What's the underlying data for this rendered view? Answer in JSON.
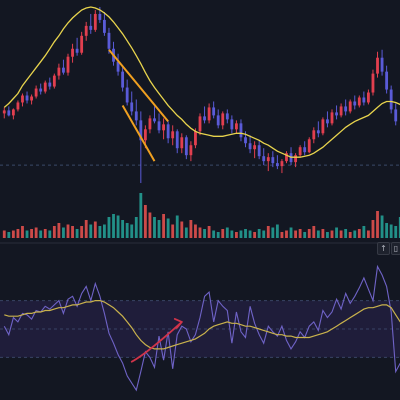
{
  "colors": {
    "background": "#131722",
    "rsi_band": "#1f1d3a",
    "up": "#e23f4f",
    "down": "#5a5bd8",
    "volume_up": "#ef5350",
    "volume_down": "#26a69a",
    "ma": "#e8d44d",
    "rsi": "#6f63c7",
    "rsi_ma": "#c9b24c",
    "levels": "#3a4466",
    "pane_separator": "#2a2e39",
    "wedge": "#f0a020",
    "arrow": "#d0344a"
  },
  "pane_buttons": {
    "up_icon": "↑",
    "collapse_icon": "▯"
  },
  "chart_data": [
    {
      "type": "candlestick",
      "title": "",
      "xlabel": "",
      "ylabel": "",
      "candles": [
        {
          "o": 90,
          "h": 96,
          "l": 85,
          "c": 93
        },
        {
          "o": 93,
          "h": 97,
          "l": 87,
          "c": 88
        },
        {
          "o": 88,
          "h": 95,
          "l": 84,
          "c": 94
        },
        {
          "o": 94,
          "h": 103,
          "l": 92,
          "c": 101
        },
        {
          "o": 101,
          "h": 110,
          "l": 97,
          "c": 108
        },
        {
          "o": 108,
          "h": 112,
          "l": 100,
          "c": 103
        },
        {
          "o": 103,
          "h": 109,
          "l": 99,
          "c": 107
        },
        {
          "o": 107,
          "h": 118,
          "l": 105,
          "c": 115
        },
        {
          "o": 115,
          "h": 120,
          "l": 109,
          "c": 112
        },
        {
          "o": 112,
          "h": 123,
          "l": 110,
          "c": 121
        },
        {
          "o": 121,
          "h": 126,
          "l": 114,
          "c": 117
        },
        {
          "o": 117,
          "h": 130,
          "l": 115,
          "c": 128
        },
        {
          "o": 128,
          "h": 140,
          "l": 124,
          "c": 136
        },
        {
          "o": 136,
          "h": 144,
          "l": 129,
          "c": 131
        },
        {
          "o": 131,
          "h": 150,
          "l": 128,
          "c": 147
        },
        {
          "o": 147,
          "h": 160,
          "l": 141,
          "c": 155
        },
        {
          "o": 155,
          "h": 166,
          "l": 148,
          "c": 151
        },
        {
          "o": 151,
          "h": 172,
          "l": 149,
          "c": 168
        },
        {
          "o": 168,
          "h": 182,
          "l": 163,
          "c": 178
        },
        {
          "o": 178,
          "h": 190,
          "l": 170,
          "c": 174
        },
        {
          "o": 174,
          "h": 194,
          "l": 172,
          "c": 190
        },
        {
          "o": 190,
          "h": 197,
          "l": 181,
          "c": 184
        },
        {
          "o": 184,
          "h": 192,
          "l": 168,
          "c": 171
        },
        {
          "o": 171,
          "h": 176,
          "l": 150,
          "c": 155
        },
        {
          "o": 155,
          "h": 162,
          "l": 138,
          "c": 142
        },
        {
          "o": 142,
          "h": 150,
          "l": 128,
          "c": 132
        },
        {
          "o": 132,
          "h": 138,
          "l": 112,
          "c": 116
        },
        {
          "o": 116,
          "h": 124,
          "l": 98,
          "c": 101
        },
        {
          "o": 101,
          "h": 112,
          "l": 88,
          "c": 92
        },
        {
          "o": 92,
          "h": 104,
          "l": 78,
          "c": 83
        },
        {
          "o": 83,
          "h": 92,
          "l": 20,
          "c": 63
        },
        {
          "o": 63,
          "h": 78,
          "l": 55,
          "c": 74
        },
        {
          "o": 74,
          "h": 88,
          "l": 70,
          "c": 85
        },
        {
          "o": 85,
          "h": 97,
          "l": 80,
          "c": 82
        },
        {
          "o": 82,
          "h": 90,
          "l": 70,
          "c": 73
        },
        {
          "o": 73,
          "h": 85,
          "l": 64,
          "c": 79
        },
        {
          "o": 79,
          "h": 82,
          "l": 60,
          "c": 65
        },
        {
          "o": 65,
          "h": 78,
          "l": 58,
          "c": 72
        },
        {
          "o": 72,
          "h": 74,
          "l": 50,
          "c": 55
        },
        {
          "o": 55,
          "h": 70,
          "l": 50,
          "c": 66
        },
        {
          "o": 66,
          "h": 68,
          "l": 44,
          "c": 48
        },
        {
          "o": 48,
          "h": 62,
          "l": 42,
          "c": 58
        },
        {
          "o": 58,
          "h": 75,
          "l": 55,
          "c": 72
        },
        {
          "o": 72,
          "h": 90,
          "l": 68,
          "c": 87
        },
        {
          "o": 87,
          "h": 97,
          "l": 80,
          "c": 83
        },
        {
          "o": 83,
          "h": 100,
          "l": 80,
          "c": 96
        },
        {
          "o": 96,
          "h": 102,
          "l": 85,
          "c": 88
        },
        {
          "o": 88,
          "h": 94,
          "l": 75,
          "c": 78
        },
        {
          "o": 78,
          "h": 92,
          "l": 74,
          "c": 90
        },
        {
          "o": 90,
          "h": 94,
          "l": 80,
          "c": 84
        },
        {
          "o": 84,
          "h": 88,
          "l": 70,
          "c": 74
        },
        {
          "o": 74,
          "h": 83,
          "l": 70,
          "c": 80
        },
        {
          "o": 80,
          "h": 84,
          "l": 62,
          "c": 66
        },
        {
          "o": 66,
          "h": 72,
          "l": 56,
          "c": 60
        },
        {
          "o": 60,
          "h": 68,
          "l": 50,
          "c": 54
        },
        {
          "o": 54,
          "h": 62,
          "l": 45,
          "c": 58
        },
        {
          "o": 58,
          "h": 63,
          "l": 44,
          "c": 47
        },
        {
          "o": 47,
          "h": 55,
          "l": 38,
          "c": 42
        },
        {
          "o": 42,
          "h": 50,
          "l": 32,
          "c": 46
        },
        {
          "o": 46,
          "h": 52,
          "l": 36,
          "c": 40
        },
        {
          "o": 40,
          "h": 48,
          "l": 34,
          "c": 37
        },
        {
          "o": 37,
          "h": 44,
          "l": 30,
          "c": 42
        },
        {
          "o": 42,
          "h": 52,
          "l": 40,
          "c": 50
        },
        {
          "o": 50,
          "h": 56,
          "l": 38,
          "c": 41
        },
        {
          "o": 41,
          "h": 50,
          "l": 36,
          "c": 48
        },
        {
          "o": 48,
          "h": 58,
          "l": 46,
          "c": 56
        },
        {
          "o": 56,
          "h": 62,
          "l": 48,
          "c": 51
        },
        {
          "o": 51,
          "h": 66,
          "l": 50,
          "c": 64
        },
        {
          "o": 64,
          "h": 76,
          "l": 60,
          "c": 73
        },
        {
          "o": 73,
          "h": 82,
          "l": 66,
          "c": 70
        },
        {
          "o": 70,
          "h": 86,
          "l": 68,
          "c": 84
        },
        {
          "o": 84,
          "h": 92,
          "l": 76,
          "c": 80
        },
        {
          "o": 80,
          "h": 94,
          "l": 78,
          "c": 91
        },
        {
          "o": 91,
          "h": 98,
          "l": 84,
          "c": 88
        },
        {
          "o": 88,
          "h": 100,
          "l": 86,
          "c": 97
        },
        {
          "o": 97,
          "h": 104,
          "l": 88,
          "c": 92
        },
        {
          "o": 92,
          "h": 104,
          "l": 90,
          "c": 102
        },
        {
          "o": 102,
          "h": 108,
          "l": 94,
          "c": 98
        },
        {
          "o": 98,
          "h": 108,
          "l": 96,
          "c": 106
        },
        {
          "o": 106,
          "h": 112,
          "l": 98,
          "c": 101
        },
        {
          "o": 101,
          "h": 114,
          "l": 99,
          "c": 111
        },
        {
          "o": 111,
          "h": 134,
          "l": 108,
          "c": 130
        },
        {
          "o": 130,
          "h": 152,
          "l": 126,
          "c": 146
        },
        {
          "o": 146,
          "h": 154,
          "l": 128,
          "c": 132
        },
        {
          "o": 132,
          "h": 138,
          "l": 110,
          "c": 114
        },
        {
          "o": 114,
          "h": 118,
          "l": 90,
          "c": 94
        },
        {
          "o": 94,
          "h": 100,
          "l": 78,
          "c": 82
        }
      ],
      "moving_average": [
        96,
        100,
        105,
        110,
        118,
        124,
        130,
        136,
        142,
        148,
        155,
        162,
        168,
        175,
        181,
        186,
        190,
        194,
        196,
        197,
        196,
        194,
        191,
        187,
        182,
        176,
        170,
        163,
        156,
        148,
        140,
        131,
        123,
        116,
        110,
        104,
        98,
        93,
        88,
        84,
        79,
        75,
        72,
        70,
        69,
        68,
        67,
        67,
        67,
        68,
        69,
        70,
        70,
        69,
        67,
        65,
        63,
        60,
        58,
        55,
        52,
        50,
        48,
        46,
        46,
        46,
        47,
        48,
        50,
        53,
        56,
        60,
        64,
        68,
        72,
        76,
        79,
        82,
        84,
        86,
        88,
        92,
        96,
        100,
        102,
        102,
        101,
        99
      ]
    },
    {
      "type": "bar",
      "title": "",
      "values": [
        5,
        4,
        5,
        6,
        8,
        5,
        6,
        7,
        5,
        6,
        5,
        8,
        10,
        7,
        9,
        8,
        6,
        8,
        12,
        9,
        11,
        8,
        9,
        14,
        16,
        15,
        12,
        10,
        9,
        14,
        30,
        22,
        17,
        14,
        12,
        16,
        13,
        9,
        15,
        11,
        7,
        12,
        9,
        7,
        6,
        8,
        5,
        4,
        6,
        7,
        5,
        4,
        5,
        6,
        5,
        4,
        6,
        5,
        8,
        7,
        9,
        4,
        5,
        7,
        5,
        6,
        4,
        6,
        8,
        5,
        6,
        4,
        5,
        7,
        5,
        6,
        4,
        5,
        6,
        8,
        5,
        12,
        18,
        15,
        10,
        9,
        8,
        14
      ],
      "directions": [
        "u",
        "d",
        "u",
        "u",
        "u",
        "d",
        "u",
        "u",
        "d",
        "u",
        "d",
        "u",
        "u",
        "d",
        "u",
        "u",
        "d",
        "u",
        "u",
        "d",
        "u",
        "d",
        "d",
        "d",
        "d",
        "d",
        "d",
        "d",
        "d",
        "d",
        "d",
        "u",
        "u",
        "d",
        "d",
        "u",
        "d",
        "u",
        "d",
        "u",
        "d",
        "u",
        "u",
        "u",
        "d",
        "u",
        "d",
        "d",
        "u",
        "d",
        "d",
        "u",
        "d",
        "d",
        "d",
        "u",
        "d",
        "d",
        "u",
        "d",
        "d",
        "u",
        "u",
        "d",
        "u",
        "u",
        "d",
        "u",
        "u",
        "d",
        "u",
        "d",
        "u",
        "d",
        "u",
        "d",
        "u",
        "d",
        "u",
        "d",
        "u",
        "u",
        "u",
        "d",
        "d",
        "d",
        "d",
        "d"
      ]
    },
    {
      "type": "line",
      "title": "",
      "ylim": [
        0,
        100
      ],
      "levels": [
        70,
        50,
        30
      ],
      "rsi": [
        52,
        46,
        58,
        55,
        61,
        60,
        57,
        63,
        62,
        66,
        64,
        67,
        70,
        61,
        71,
        73,
        66,
        75,
        80,
        70,
        82,
        73,
        61,
        47,
        40,
        32,
        26,
        17,
        12,
        7,
        20,
        34,
        30,
        23,
        45,
        28,
        48,
        22,
        46,
        52,
        50,
        41,
        46,
        58,
        73,
        76,
        55,
        70,
        66,
        63,
        40,
        62,
        48,
        44,
        66,
        54,
        46,
        40,
        52,
        48,
        45,
        52,
        42,
        36,
        41,
        48,
        44,
        52,
        55,
        49,
        63,
        58,
        62,
        71,
        64,
        75,
        68,
        73,
        79,
        86,
        78,
        70,
        94,
        88,
        80,
        62,
        20,
        26
      ],
      "rsi_ma": [
        60,
        59,
        59,
        59,
        60,
        61,
        61,
        62,
        62,
        63,
        63,
        64,
        65,
        65,
        66,
        67,
        67,
        68,
        69,
        69,
        70,
        70,
        69,
        67,
        65,
        62,
        59,
        55,
        51,
        46,
        42,
        39,
        37,
        36,
        36,
        36,
        37,
        38,
        39,
        40,
        41,
        42,
        43,
        45,
        47,
        50,
        52,
        53,
        54,
        55,
        54,
        54,
        53,
        52,
        52,
        51,
        50,
        49,
        48,
        47,
        46,
        46,
        45,
        45,
        44,
        44,
        44,
        44,
        45,
        46,
        47,
        48,
        50,
        52,
        54,
        56,
        58,
        60,
        62,
        64,
        65,
        65,
        66,
        67,
        67,
        65,
        60,
        55
      ]
    }
  ]
}
